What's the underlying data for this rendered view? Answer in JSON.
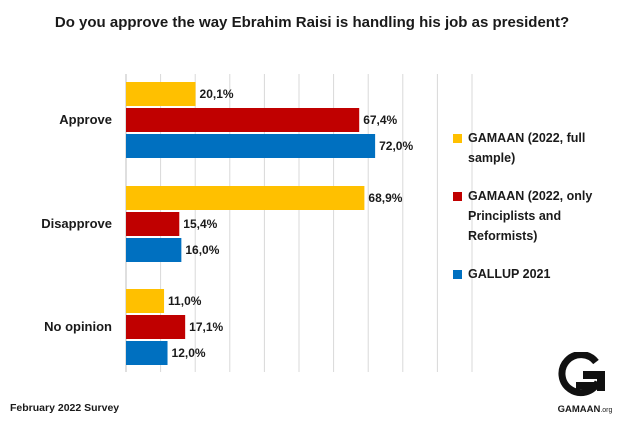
{
  "chart_data": {
    "type": "bar",
    "orientation": "horizontal",
    "title": "Do you approve the way Ebrahim Raisi is handling his job as president?",
    "categories": [
      "Approve",
      "Disapprove",
      "No opinion"
    ],
    "series": [
      {
        "name": "GAMAAN (2022, full sample)",
        "color": "#FFC000",
        "values": [
          20.1,
          68.9,
          11.0
        ],
        "labels": [
          "20,1%",
          "68,9%",
          "11,0%"
        ]
      },
      {
        "name": "GAMAAN (2022, only Principlists and Reformists)",
        "color": "#C00000",
        "values": [
          67.4,
          15.4,
          17.1
        ],
        "labels": [
          "67,4%",
          "15,4%",
          "17,1%"
        ]
      },
      {
        "name": "GALLUP 2021",
        "color": "#0070C0",
        "values": [
          72.0,
          16.0,
          12.0
        ],
        "labels": [
          "72,0%",
          "16,0%",
          "12,0%"
        ]
      }
    ],
    "xlim": [
      0,
      100
    ],
    "grid": true,
    "legend_position": "right"
  },
  "legend": {
    "items": [
      {
        "label": "GAMAAN (2022, full sample)",
        "color": "#FFC000"
      },
      {
        "label": "GAMAAN (2022, only Principlists and Reformists)",
        "color": "#C00000"
      },
      {
        "label": "GALLUP 2021",
        "color": "#0070C0"
      }
    ]
  },
  "footnote": "February 2022 Survey",
  "logo": {
    "name": "GAMAAN",
    "suffix": ".org",
    "icon": "gamaan-logo-icon"
  }
}
